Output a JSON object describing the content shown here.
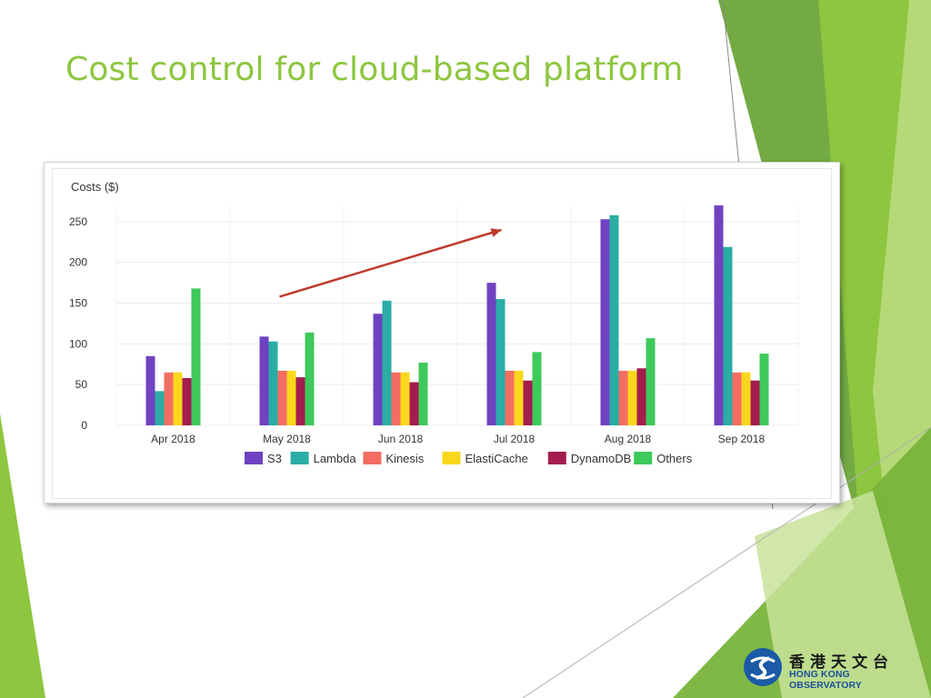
{
  "slide": {
    "title": "Cost control for cloud-based platform"
  },
  "logo": {
    "name_chinese": "香港天文台",
    "name_english": "HONG KONG OBSERVATORY"
  },
  "colors": {
    "title": "#8dc63f",
    "trend_arrow": "#c0392b"
  },
  "chart_data": {
    "type": "bar",
    "ylabel": "Costs ($)",
    "xlabel": "",
    "ylim": [
      0,
      270
    ],
    "yticks": [
      0,
      50,
      100,
      150,
      200,
      250
    ],
    "grid": true,
    "legend_position": "bottom",
    "categories": [
      "Apr 2018",
      "May 2018",
      "Jun 2018",
      "Jul 2018",
      "Aug 2018",
      "Sep 2018"
    ],
    "series": [
      {
        "name": "S3",
        "color": "#6f42c1",
        "values": [
          85,
          109,
          137,
          175,
          253,
          270
        ]
      },
      {
        "name": "Lambda",
        "color": "#2aada5",
        "values": [
          42,
          103,
          153,
          155,
          258,
          219
        ]
      },
      {
        "name": "Kinesis",
        "color": "#f46d62",
        "values": [
          65,
          67,
          65,
          67,
          67,
          65
        ]
      },
      {
        "name": "ElastiCache",
        "color": "#f9d71c",
        "values": [
          65,
          67,
          65,
          67,
          67,
          65
        ]
      },
      {
        "name": "DynamoDB",
        "color": "#a31d4f",
        "values": [
          58,
          59,
          53,
          55,
          70,
          55
        ]
      },
      {
        "name": "Others",
        "color": "#3ec95b",
        "values": [
          168,
          114,
          77,
          90,
          107,
          88
        ]
      }
    ],
    "annotations": [
      {
        "type": "trend-arrow",
        "from": {
          "x": "May 2018",
          "y": 158
        },
        "to": {
          "x": "Jul 2018",
          "y": 240
        }
      }
    ]
  }
}
